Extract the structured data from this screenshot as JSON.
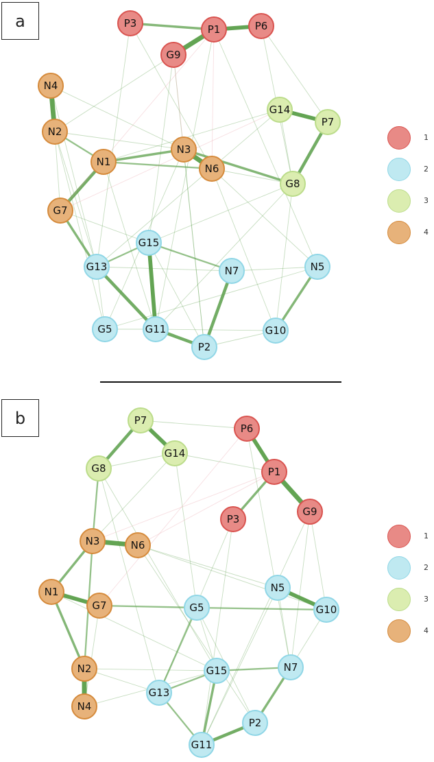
{
  "colors": {
    "1": {
      "fill": "#e88a86",
      "stroke": "#d9534f"
    },
    "2": {
      "fill": "#bfe9f1",
      "stroke": "#8fd6e6"
    },
    "3": {
      "fill": "#dbedb0",
      "stroke": "#bbdc8a"
    },
    "4": {
      "fill": "#e7b27a",
      "stroke": "#d58a3b"
    },
    "edge_pos": "#5b9f4a",
    "edge_neg": "#e8a0a8"
  },
  "legend": [
    {
      "group": "1",
      "label": "1"
    },
    {
      "group": "2",
      "label": "2"
    },
    {
      "group": "3",
      "label": "3"
    },
    {
      "group": "4",
      "label": "4"
    }
  ],
  "panels": [
    {
      "tag": "a",
      "nodes": [
        {
          "id": "P3",
          "group": "1"
        },
        {
          "id": "P1",
          "group": "1"
        },
        {
          "id": "P6",
          "group": "1"
        },
        {
          "id": "G9",
          "group": "1"
        },
        {
          "id": "N4",
          "group": "4"
        },
        {
          "id": "N2",
          "group": "4"
        },
        {
          "id": "N1",
          "group": "4"
        },
        {
          "id": "N3",
          "group": "4"
        },
        {
          "id": "N6",
          "group": "4"
        },
        {
          "id": "G7",
          "group": "4"
        },
        {
          "id": "G14",
          "group": "3"
        },
        {
          "id": "P7",
          "group": "3"
        },
        {
          "id": "G8",
          "group": "3"
        },
        {
          "id": "G15",
          "group": "2"
        },
        {
          "id": "G13",
          "group": "2"
        },
        {
          "id": "N7",
          "group": "2"
        },
        {
          "id": "N5",
          "group": "2"
        },
        {
          "id": "G5",
          "group": "2"
        },
        {
          "id": "G11",
          "group": "2"
        },
        {
          "id": "P2",
          "group": "2"
        },
        {
          "id": "G10",
          "group": "2"
        }
      ],
      "edges": [
        {
          "s": "P3",
          "t": "P1",
          "w": 3,
          "sign": "+"
        },
        {
          "s": "P1",
          "t": "P6",
          "w": 5,
          "sign": "+"
        },
        {
          "s": "P1",
          "t": "G9",
          "w": 6,
          "sign": "+"
        },
        {
          "s": "N4",
          "t": "N2",
          "w": 6,
          "sign": "+"
        },
        {
          "s": "G14",
          "t": "P7",
          "w": 5,
          "sign": "+"
        },
        {
          "s": "P7",
          "t": "G8",
          "w": 4,
          "sign": "+"
        },
        {
          "s": "N3",
          "t": "N6",
          "w": 6,
          "sign": "+"
        },
        {
          "s": "N1",
          "t": "G7",
          "w": 4,
          "sign": "+"
        },
        {
          "s": "N1",
          "t": "N3",
          "w": 3,
          "sign": "+"
        },
        {
          "s": "N3",
          "t": "G8",
          "w": 3,
          "sign": "+"
        },
        {
          "s": "N2",
          "t": "N1",
          "w": 2,
          "sign": "+"
        },
        {
          "s": "N2",
          "t": "G7",
          "w": 1,
          "sign": "+"
        },
        {
          "s": "N2",
          "t": "N3",
          "w": 1,
          "sign": "+"
        },
        {
          "s": "N1",
          "t": "N6",
          "w": 2,
          "sign": "+"
        },
        {
          "s": "G14",
          "t": "G8",
          "w": 1,
          "sign": "+"
        },
        {
          "s": "G8",
          "t": "N6",
          "w": 1,
          "sign": "+"
        },
        {
          "s": "G7",
          "t": "G13",
          "w": 3,
          "sign": "+"
        },
        {
          "s": "G15",
          "t": "G11",
          "w": 5,
          "sign": "+"
        },
        {
          "s": "G13",
          "t": "G11",
          "w": 4,
          "sign": "+"
        },
        {
          "s": "G11",
          "t": "P2",
          "w": 4,
          "sign": "+"
        },
        {
          "s": "N7",
          "t": "P2",
          "w": 4,
          "sign": "+"
        },
        {
          "s": "N5",
          "t": "G10",
          "w": 3,
          "sign": "+"
        },
        {
          "s": "G15",
          "t": "N7",
          "w": 2,
          "sign": "+"
        },
        {
          "s": "G13",
          "t": "G15",
          "w": 2,
          "sign": "+"
        },
        {
          "s": "G15",
          "t": "G8",
          "w": 1,
          "sign": "+"
        },
        {
          "s": "G5",
          "t": "G11",
          "w": 1,
          "sign": "+"
        },
        {
          "s": "G5",
          "t": "G13",
          "w": 1,
          "sign": "+"
        },
        {
          "s": "P2",
          "t": "G10",
          "w": 1,
          "sign": "+"
        },
        {
          "s": "G11",
          "t": "G10",
          "w": 1,
          "sign": "+"
        },
        {
          "s": "N7",
          "t": "N5",
          "w": 1,
          "sign": "+"
        },
        {
          "s": "N2",
          "t": "G5",
          "w": 1,
          "sign": "+"
        },
        {
          "s": "N2",
          "t": "G13",
          "w": 1,
          "sign": "+"
        },
        {
          "s": "N4",
          "t": "G13",
          "w": 1,
          "sign": "+"
        },
        {
          "s": "N4",
          "t": "N3",
          "w": 1,
          "sign": "+"
        },
        {
          "s": "P3",
          "t": "N6",
          "w": 1,
          "sign": "+"
        },
        {
          "s": "P3",
          "t": "G13",
          "w": 1,
          "sign": "+"
        },
        {
          "s": "P6",
          "t": "P7",
          "w": 1,
          "sign": "+"
        },
        {
          "s": "P6",
          "t": "G8",
          "w": 1,
          "sign": "+"
        },
        {
          "s": "G9",
          "t": "G15",
          "w": 1,
          "sign": "+"
        },
        {
          "s": "G9",
          "t": "N2",
          "w": 1,
          "sign": "+"
        },
        {
          "s": "G9",
          "t": "P2",
          "w": 1,
          "sign": "+"
        },
        {
          "s": "P1",
          "t": "G11",
          "w": 1,
          "sign": "+"
        },
        {
          "s": "P1",
          "t": "N5",
          "w": 1,
          "sign": "+"
        },
        {
          "s": "G14",
          "t": "N1",
          "w": 1,
          "sign": "+"
        },
        {
          "s": "G14",
          "t": "G13",
          "w": 1,
          "sign": "+"
        },
        {
          "s": "N6",
          "t": "N5",
          "w": 1,
          "sign": "+"
        },
        {
          "s": "N6",
          "t": "G10",
          "w": 1,
          "sign": "+"
        },
        {
          "s": "N3",
          "t": "G5",
          "w": 1,
          "sign": "+"
        },
        {
          "s": "N3",
          "t": "P2",
          "w": 1,
          "sign": "+"
        },
        {
          "s": "G7",
          "t": "G15",
          "w": 1,
          "sign": "+"
        },
        {
          "s": "N1",
          "t": "G11",
          "w": 1,
          "sign": "+"
        },
        {
          "s": "G8",
          "t": "G10",
          "w": 1,
          "sign": "+"
        },
        {
          "s": "G8",
          "t": "G11",
          "w": 1,
          "sign": "+"
        },
        {
          "s": "N7",
          "t": "G13",
          "w": 1,
          "sign": "+"
        },
        {
          "s": "G15",
          "t": "P2",
          "w": 1,
          "sign": "+"
        },
        {
          "s": "N5",
          "t": "G5",
          "w": 1,
          "sign": "+"
        },
        {
          "s": "P1",
          "t": "G7",
          "w": 1,
          "sign": "-"
        },
        {
          "s": "G14",
          "t": "G7",
          "w": 1,
          "sign": "-"
        },
        {
          "s": "P1",
          "t": "N6",
          "w": 1,
          "sign": "-"
        },
        {
          "s": "G9",
          "t": "N3",
          "w": 1,
          "sign": "-"
        }
      ]
    },
    {
      "tag": "b",
      "nodes": [
        {
          "id": "P7",
          "group": "3"
        },
        {
          "id": "G14",
          "group": "3"
        },
        {
          "id": "G8",
          "group": "3"
        },
        {
          "id": "P6",
          "group": "1"
        },
        {
          "id": "P1",
          "group": "1"
        },
        {
          "id": "P3",
          "group": "1"
        },
        {
          "id": "G9",
          "group": "1"
        },
        {
          "id": "N3",
          "group": "4"
        },
        {
          "id": "N6",
          "group": "4"
        },
        {
          "id": "N1",
          "group": "4"
        },
        {
          "id": "G7",
          "group": "4"
        },
        {
          "id": "N2",
          "group": "4"
        },
        {
          "id": "N4",
          "group": "4"
        },
        {
          "id": "N5",
          "group": "2"
        },
        {
          "id": "G10",
          "group": "2"
        },
        {
          "id": "G5",
          "group": "2"
        },
        {
          "id": "G15",
          "group": "2"
        },
        {
          "id": "N7",
          "group": "2"
        },
        {
          "id": "G13",
          "group": "2"
        },
        {
          "id": "P2",
          "group": "2"
        },
        {
          "id": "G11",
          "group": "2"
        }
      ],
      "edges": [
        {
          "s": "P7",
          "t": "G14",
          "w": 5,
          "sign": "+"
        },
        {
          "s": "P7",
          "t": "G8",
          "w": 4,
          "sign": "+"
        },
        {
          "s": "P6",
          "t": "P1",
          "w": 5,
          "sign": "+"
        },
        {
          "s": "P1",
          "t": "G9",
          "w": 6,
          "sign": "+"
        },
        {
          "s": "P1",
          "t": "P3",
          "w": 3,
          "sign": "+"
        },
        {
          "s": "N3",
          "t": "N6",
          "w": 6,
          "sign": "+"
        },
        {
          "s": "N1",
          "t": "N3",
          "w": 3,
          "sign": "+"
        },
        {
          "s": "N1",
          "t": "G7",
          "w": 5,
          "sign": "+"
        },
        {
          "s": "N1",
          "t": "N2",
          "w": 3,
          "sign": "+"
        },
        {
          "s": "N2",
          "t": "N4",
          "w": 6,
          "sign": "+"
        },
        {
          "s": "N3",
          "t": "N2",
          "w": 2,
          "sign": "+"
        },
        {
          "s": "G8",
          "t": "N3",
          "w": 2,
          "sign": "+"
        },
        {
          "s": "G8",
          "t": "G14",
          "w": 1,
          "sign": "+"
        },
        {
          "s": "N6",
          "t": "N5",
          "w": 1,
          "sign": "+"
        },
        {
          "s": "N5",
          "t": "G10",
          "w": 5,
          "sign": "+"
        },
        {
          "s": "G7",
          "t": "G5",
          "w": 2,
          "sign": "+"
        },
        {
          "s": "G5",
          "t": "G10",
          "w": 2,
          "sign": "+"
        },
        {
          "s": "G5",
          "t": "G13",
          "w": 2,
          "sign": "+"
        },
        {
          "s": "G15",
          "t": "N7",
          "w": 2,
          "sign": "+"
        },
        {
          "s": "G15",
          "t": "G11",
          "w": 3,
          "sign": "+"
        },
        {
          "s": "G15",
          "t": "G13",
          "w": 2,
          "sign": "+"
        },
        {
          "s": "G11",
          "t": "P2",
          "w": 4,
          "sign": "+"
        },
        {
          "s": "P2",
          "t": "N7",
          "w": 3,
          "sign": "+"
        },
        {
          "s": "G13",
          "t": "G11",
          "w": 2,
          "sign": "+"
        },
        {
          "s": "G13",
          "t": "N2",
          "w": 1,
          "sign": "+"
        },
        {
          "s": "N2",
          "t": "G15",
          "w": 1,
          "sign": "+"
        },
        {
          "s": "N5",
          "t": "N7",
          "w": 1,
          "sign": "+"
        },
        {
          "s": "G5",
          "t": "P2",
          "w": 1,
          "sign": "+"
        },
        {
          "s": "G5",
          "t": "G15",
          "w": 1,
          "sign": "+"
        },
        {
          "s": "N1",
          "t": "G15",
          "w": 1,
          "sign": "+"
        },
        {
          "s": "G14",
          "t": "N3",
          "w": 1,
          "sign": "+"
        },
        {
          "s": "G14",
          "t": "G5",
          "w": 1,
          "sign": "+"
        },
        {
          "s": "G8",
          "t": "G15",
          "w": 1,
          "sign": "+"
        },
        {
          "s": "G8",
          "t": "G13",
          "w": 1,
          "sign": "+"
        },
        {
          "s": "P6",
          "t": "P7",
          "w": 1,
          "sign": "+"
        },
        {
          "s": "P6",
          "t": "N7",
          "w": 1,
          "sign": "+"
        },
        {
          "s": "P3",
          "t": "G13",
          "w": 1,
          "sign": "+"
        },
        {
          "s": "P3",
          "t": "G11",
          "w": 1,
          "sign": "+"
        },
        {
          "s": "G9",
          "t": "G10",
          "w": 1,
          "sign": "+"
        },
        {
          "s": "G9",
          "t": "N7",
          "w": 1,
          "sign": "+"
        },
        {
          "s": "G9",
          "t": "G11",
          "w": 1,
          "sign": "+"
        },
        {
          "s": "P1",
          "t": "G14",
          "w": 1,
          "sign": "+"
        },
        {
          "s": "N6",
          "t": "G10",
          "w": 1,
          "sign": "+"
        },
        {
          "s": "N6",
          "t": "P2",
          "w": 1,
          "sign": "+"
        },
        {
          "s": "G7",
          "t": "N4",
          "w": 1,
          "sign": "+"
        },
        {
          "s": "N4",
          "t": "G15",
          "w": 1,
          "sign": "+"
        },
        {
          "s": "G10",
          "t": "N7",
          "w": 1,
          "sign": "+"
        },
        {
          "s": "N5",
          "t": "G11",
          "w": 1,
          "sign": "+"
        },
        {
          "s": "P6",
          "t": "G7",
          "w": 1,
          "sign": "-"
        },
        {
          "s": "P1",
          "t": "N3",
          "w": 1,
          "sign": "-"
        },
        {
          "s": "P1",
          "t": "N6",
          "w": 1,
          "sign": "-"
        }
      ]
    }
  ]
}
